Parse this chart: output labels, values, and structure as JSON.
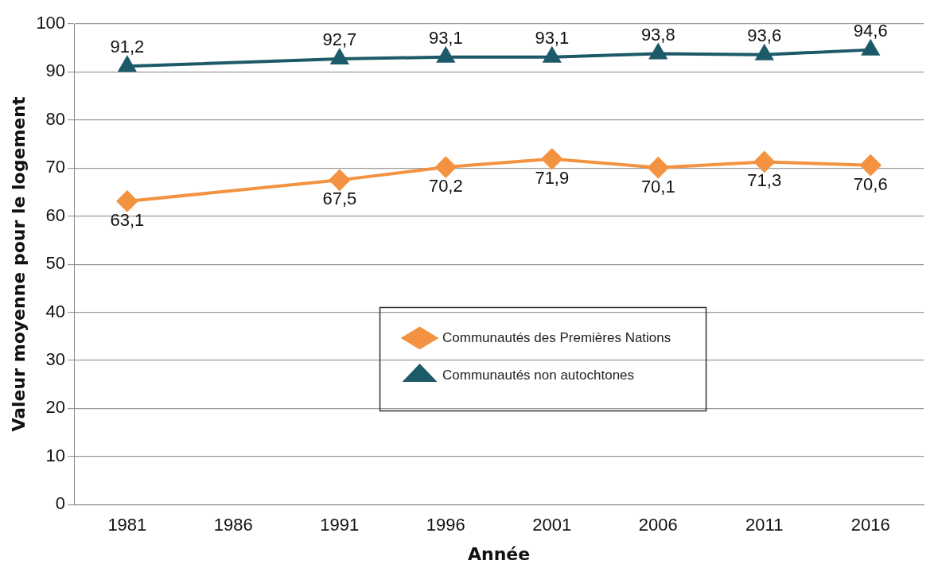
{
  "chart_data": {
    "type": "line",
    "xlabel": "Année",
    "ylabel": "Valeur moyenne pour le logement",
    "categories": [
      "1981",
      "1986",
      "1991",
      "1996",
      "2001",
      "2006",
      "2011",
      "2016"
    ],
    "series": [
      {
        "name": "Communautés des Premières Nations",
        "color": "#f39240",
        "marker": "diamond",
        "values": [
          63.1,
          null,
          67.5,
          70.2,
          71.9,
          70.1,
          71.3,
          70.6
        ],
        "value_labels": [
          "63,1",
          null,
          "67,5",
          "70,2",
          "71,9",
          "70,1",
          "71,3",
          "70,6"
        ]
      },
      {
        "name": "Communautés non autochtones",
        "color": "#1d5a69",
        "marker": "triangle",
        "values": [
          91.2,
          null,
          92.7,
          93.1,
          93.1,
          93.8,
          93.6,
          94.6
        ],
        "value_labels": [
          "91,2",
          null,
          "92,7",
          "93,1",
          "93,1",
          "93,8",
          "93,6",
          "94,6"
        ]
      }
    ],
    "ylim": [
      0,
      100
    ],
    "yticks": [
      0,
      10,
      20,
      30,
      40,
      50,
      60,
      70,
      80,
      90,
      100
    ],
    "grid": "y",
    "legend": "center"
  }
}
